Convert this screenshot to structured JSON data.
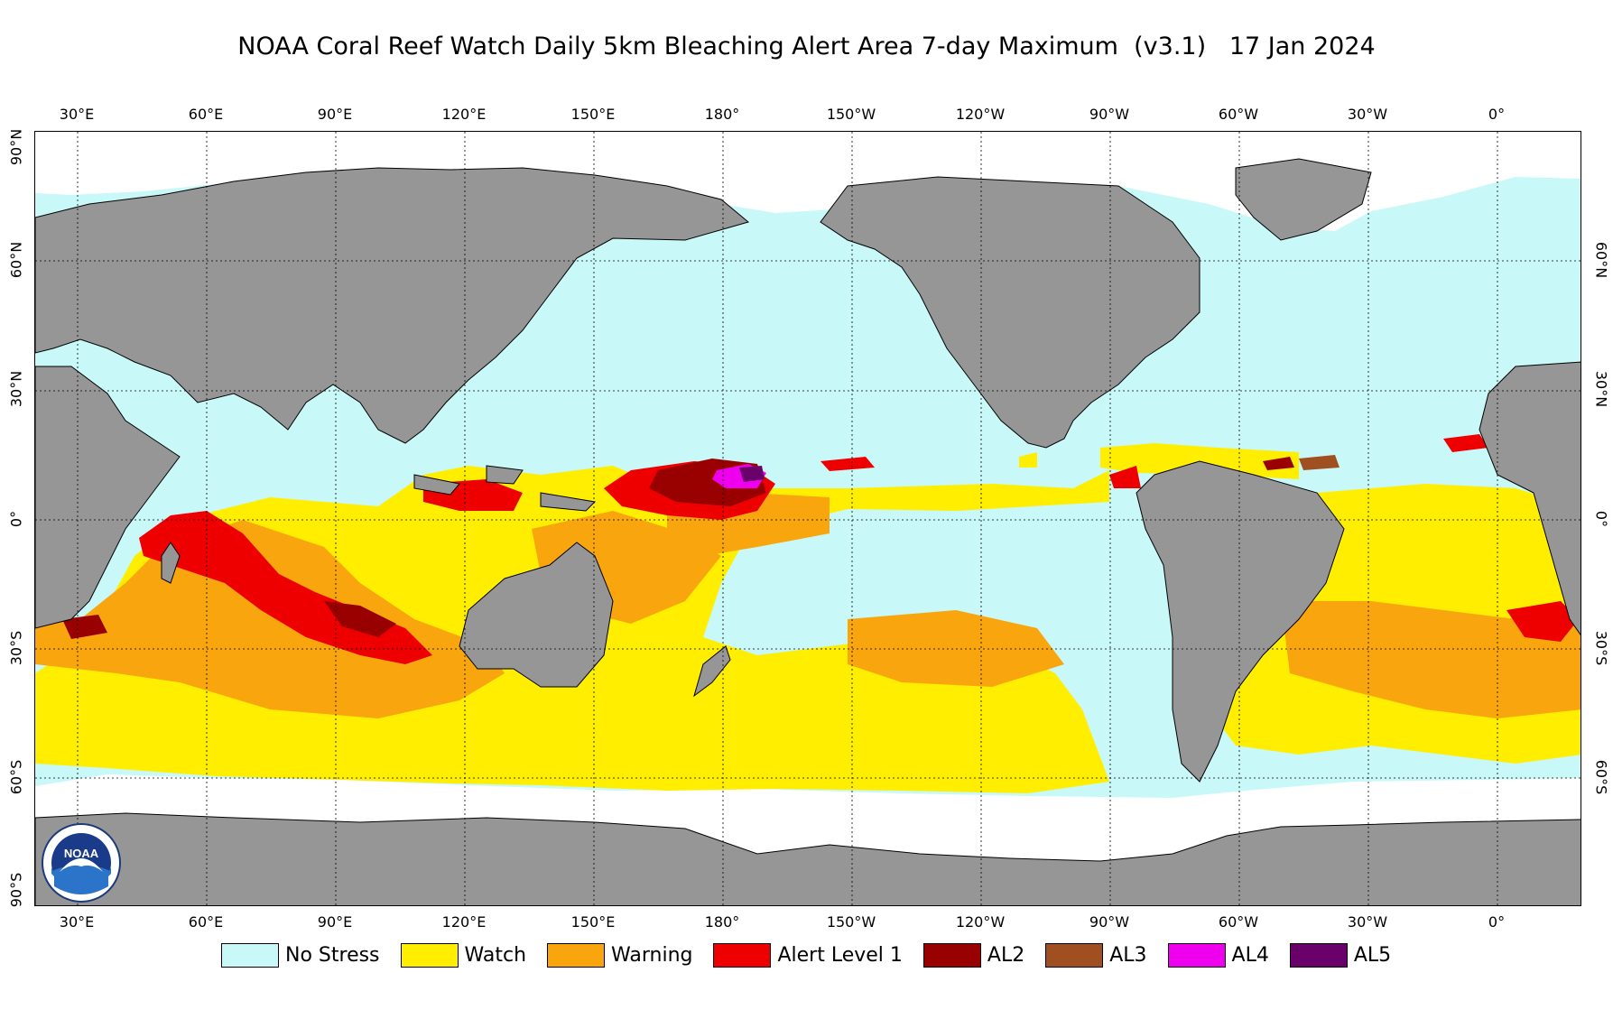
{
  "title": "NOAA Coral Reef Watch Daily 5km Bleaching Alert Area 7-day Maximum  (v3.1)   17 Jan 2024",
  "axes": {
    "lon_labels": [
      "30°E",
      "60°E",
      "90°E",
      "120°E",
      "150°E",
      "180°",
      "150°W",
      "120°W",
      "90°W",
      "60°W",
      "30°W",
      "0°"
    ],
    "lat_labels_left": [
      "90°N",
      "60°N",
      "30°N",
      "0°",
      "30°S",
      "60°S",
      "90°S"
    ],
    "lat_labels_right": [
      "60°N",
      "30°N",
      "0°",
      "30°S",
      "60°S"
    ]
  },
  "colors": {
    "no_stress": "#c8f8f8",
    "watch": "#ffee00",
    "warning": "#f9a50d",
    "alert1": "#ee0000",
    "al2": "#990000",
    "al3": "#a05020",
    "al4": "#ee00ee",
    "al5": "#6a006a",
    "land": "#969696",
    "ice": "#ffffff"
  },
  "legend": [
    {
      "label": "No Stress",
      "color": "#c8f8f8"
    },
    {
      "label": "Watch",
      "color": "#ffee00"
    },
    {
      "label": "Warning",
      "color": "#f9a50d"
    },
    {
      "label": "Alert Level 1",
      "color": "#ee0000"
    },
    {
      "label": "AL2",
      "color": "#990000"
    },
    {
      "label": "AL3",
      "color": "#a05020"
    },
    {
      "label": "AL4",
      "color": "#ee00ee"
    },
    {
      "label": "AL5",
      "color": "#6a006a"
    }
  ],
  "logo": {
    "text": "NOAA",
    "icon": "noaa-logo-icon"
  }
}
